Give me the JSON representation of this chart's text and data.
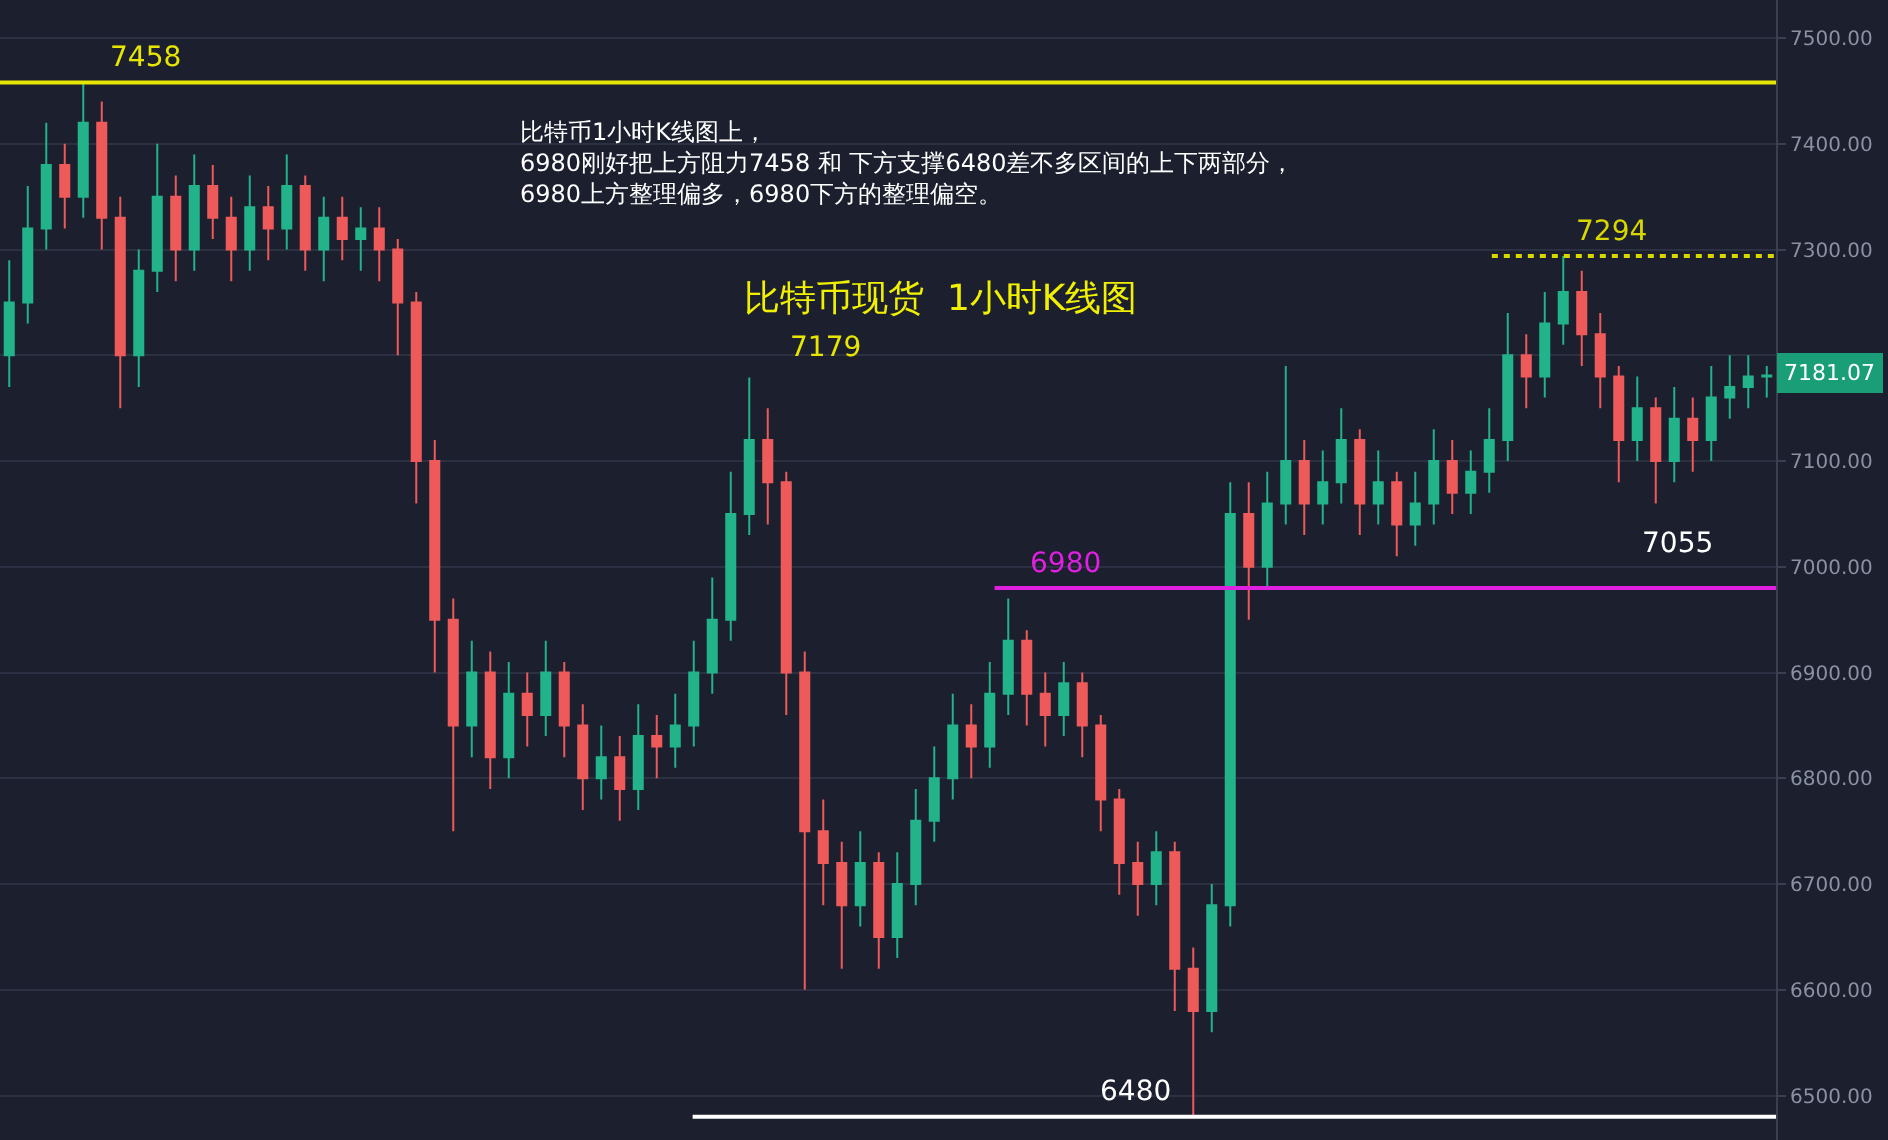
{
  "chart_data": {
    "type": "candlestick",
    "title": "比特币现货  1小时K线图",
    "annotations": [
      "比特币1小时K线图上，\n6980刚好把上方阻力7458 和 下方支撑6480差不多区间的上下两部分，\n6980上方整理偏多，6980下方的整理偏空。",
      "7179",
      "7055",
      "7181.07"
    ],
    "categories": [
      null,
      null,
      null,
      null,
      null,
      null,
      null,
      null,
      null,
      null,
      null,
      null,
      null,
      null,
      null,
      null,
      null,
      null,
      null,
      null,
      null,
      null,
      null,
      null,
      null,
      null,
      null,
      null,
      null,
      null,
      null,
      null,
      null,
      null,
      null,
      null,
      null,
      null,
      null,
      null,
      null,
      null,
      null,
      null,
      null,
      null,
      null,
      null,
      null,
      null,
      null,
      null,
      null,
      null,
      null,
      null,
      null,
      null,
      null,
      null,
      null,
      null,
      null,
      null,
      null,
      null,
      null,
      null,
      null,
      null,
      null,
      null,
      null,
      null,
      null,
      null,
      null,
      null,
      null,
      null,
      null,
      null,
      null,
      null,
      null,
      null,
      null,
      null,
      null,
      null,
      null,
      null,
      null,
      null,
      null,
      null
    ],
    "ohlc": [
      [
        7200,
        7290,
        7170,
        7250
      ],
      [
        7250,
        7360,
        7230,
        7320
      ],
      [
        7320,
        7420,
        7300,
        7380
      ],
      [
        7380,
        7400,
        7320,
        7350
      ],
      [
        7350,
        7458,
        7330,
        7420
      ],
      [
        7420,
        7440,
        7300,
        7330
      ],
      [
        7330,
        7350,
        7150,
        7200
      ],
      [
        7200,
        7300,
        7170,
        7280
      ],
      [
        7280,
        7400,
        7260,
        7350
      ],
      [
        7350,
        7370,
        7270,
        7300
      ],
      [
        7300,
        7390,
        7280,
        7360
      ],
      [
        7360,
        7380,
        7310,
        7330
      ],
      [
        7330,
        7350,
        7270,
        7300
      ],
      [
        7300,
        7370,
        7280,
        7340
      ],
      [
        7340,
        7360,
        7290,
        7320
      ],
      [
        7320,
        7390,
        7300,
        7360
      ],
      [
        7360,
        7370,
        7280,
        7300
      ],
      [
        7300,
        7350,
        7270,
        7330
      ],
      [
        7330,
        7350,
        7290,
        7310
      ],
      [
        7310,
        7340,
        7280,
        7320
      ],
      [
        7320,
        7340,
        7270,
        7300
      ],
      [
        7300,
        7310,
        7200,
        7250
      ],
      [
        7250,
        7260,
        7060,
        7100
      ],
      [
        7100,
        7120,
        6900,
        6950
      ],
      [
        6950,
        6970,
        6750,
        6850
      ],
      [
        6850,
        6930,
        6820,
        6900
      ],
      [
        6900,
        6920,
        6790,
        6820
      ],
      [
        6820,
        6910,
        6800,
        6880
      ],
      [
        6880,
        6900,
        6830,
        6860
      ],
      [
        6860,
        6930,
        6840,
        6900
      ],
      [
        6900,
        6910,
        6820,
        6850
      ],
      [
        6850,
        6870,
        6770,
        6800
      ],
      [
        6800,
        6850,
        6780,
        6820
      ],
      [
        6820,
        6840,
        6760,
        6790
      ],
      [
        6790,
        6870,
        6770,
        6840
      ],
      [
        6840,
        6860,
        6800,
        6830
      ],
      [
        6830,
        6880,
        6810,
        6850
      ],
      [
        6850,
        6930,
        6830,
        6900
      ],
      [
        6900,
        6990,
        6880,
        6950
      ],
      [
        6950,
        7090,
        6930,
        7050
      ],
      [
        7050,
        7179,
        7030,
        7120
      ],
      [
        7120,
        7150,
        7040,
        7080
      ],
      [
        7080,
        7090,
        6860,
        6900
      ],
      [
        6900,
        6920,
        6600,
        6750
      ],
      [
        6750,
        6780,
        6680,
        6720
      ],
      [
        6720,
        6740,
        6620,
        6680
      ],
      [
        6680,
        6750,
        6660,
        6720
      ],
      [
        6720,
        6730,
        6620,
        6650
      ],
      [
        6650,
        6730,
        6630,
        6700
      ],
      [
        6700,
        6790,
        6680,
        6760
      ],
      [
        6760,
        6830,
        6740,
        6800
      ],
      [
        6800,
        6880,
        6780,
        6850
      ],
      [
        6850,
        6870,
        6800,
        6830
      ],
      [
        6830,
        6910,
        6810,
        6880
      ],
      [
        6880,
        6970,
        6860,
        6930
      ],
      [
        6930,
        6940,
        6850,
        6880
      ],
      [
        6880,
        6900,
        6830,
        6860
      ],
      [
        6860,
        6910,
        6840,
        6890
      ],
      [
        6890,
        6900,
        6820,
        6850
      ],
      [
        6850,
        6860,
        6750,
        6780
      ],
      [
        6780,
        6790,
        6690,
        6720
      ],
      [
        6720,
        6740,
        6670,
        6700
      ],
      [
        6700,
        6750,
        6680,
        6730
      ],
      [
        6730,
        6740,
        6580,
        6620
      ],
      [
        6620,
        6640,
        6480,
        6580
      ],
      [
        6580,
        6700,
        6560,
        6680
      ],
      [
        6680,
        7080,
        6660,
        7050
      ],
      [
        7050,
        7080,
        6950,
        7000
      ],
      [
        7000,
        7090,
        6980,
        7060
      ],
      [
        7060,
        7190,
        7040,
        7100
      ],
      [
        7100,
        7120,
        7030,
        7060
      ],
      [
        7060,
        7110,
        7040,
        7080
      ],
      [
        7080,
        7150,
        7060,
        7120
      ],
      [
        7120,
        7130,
        7030,
        7060
      ],
      [
        7060,
        7110,
        7040,
        7080
      ],
      [
        7080,
        7090,
        7010,
        7040
      ],
      [
        7040,
        7090,
        7020,
        7060
      ],
      [
        7060,
        7130,
        7040,
        7100
      ],
      [
        7100,
        7120,
        7050,
        7070
      ],
      [
        7070,
        7110,
        7050,
        7090
      ],
      [
        7090,
        7150,
        7070,
        7120
      ],
      [
        7120,
        7240,
        7100,
        7200
      ],
      [
        7200,
        7220,
        7150,
        7180
      ],
      [
        7180,
        7260,
        7160,
        7230
      ],
      [
        7230,
        7294,
        7210,
        7260
      ],
      [
        7260,
        7280,
        7190,
        7220
      ],
      [
        7220,
        7240,
        7150,
        7180
      ],
      [
        7180,
        7190,
        7080,
        7120
      ],
      [
        7120,
        7180,
        7100,
        7150
      ],
      [
        7150,
        7160,
        7060,
        7100
      ],
      [
        7100,
        7170,
        7080,
        7140
      ],
      [
        7140,
        7160,
        7090,
        7120
      ],
      [
        7120,
        7190,
        7100,
        7160
      ],
      [
        7160,
        7200,
        7140,
        7170
      ],
      [
        7170,
        7200,
        7150,
        7180
      ],
      [
        7180,
        7190,
        7160,
        7181
      ]
    ],
    "ylim": [
      6458,
      7536
    ],
    "yticks": [
      {
        "value": 6500,
        "label": "6500.00"
      },
      {
        "value": 6600,
        "label": "6600.00"
      },
      {
        "value": 6700,
        "label": "6700.00"
      },
      {
        "value": 6800,
        "label": "6800.00"
      },
      {
        "value": 6900,
        "label": "6900.00"
      },
      {
        "value": 7000,
        "label": "7000.00"
      },
      {
        "value": 7100,
        "label": "7100.00"
      },
      {
        "value": 7200,
        "label": null
      },
      {
        "value": 7300,
        "label": "7300.00"
      },
      {
        "value": 7400,
        "label": "7400.00"
      },
      {
        "value": 7500,
        "label": "7500.00"
      }
    ],
    "ref_lines": [
      {
        "axis": "y",
        "value": 7458,
        "label": "7458",
        "color": "#e6e600",
        "line_style": "solid"
      },
      {
        "axis": "y",
        "value": 7294,
        "label": "7294",
        "color": "#d8d800",
        "line_style": "dotted"
      },
      {
        "axis": "y",
        "value": 6980,
        "label": "6980",
        "color": "#e020e0",
        "line_style": "solid"
      },
      {
        "axis": "y",
        "value": 6480,
        "label": "6480",
        "color": "#ffffff",
        "line_style": "solid"
      }
    ],
    "grid": true,
    "tick_labels": "y"
  }
}
